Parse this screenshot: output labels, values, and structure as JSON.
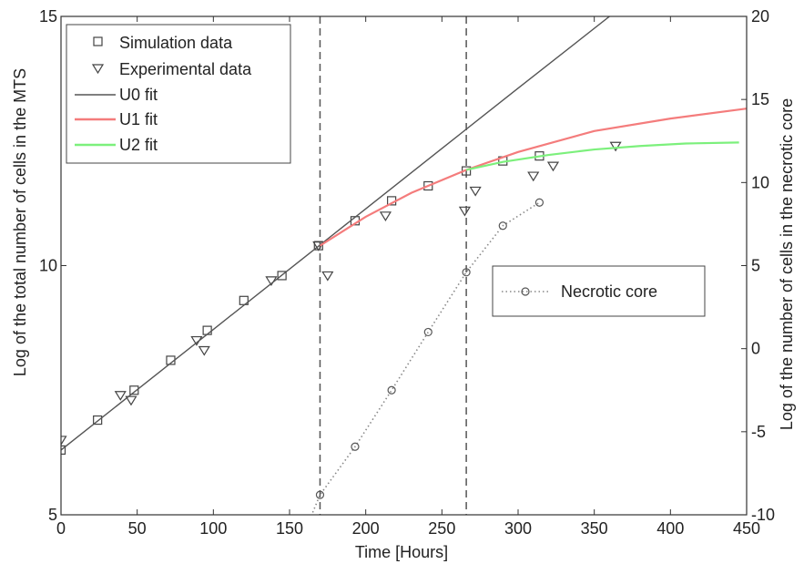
{
  "chart_data": {
    "type": "line",
    "xlabel": "Time [Hours]",
    "ylabel_left": "Log of the total number of cells in the MTS",
    "ylabel_right": "Log of the number of cells in the necrotic core",
    "xlim": [
      0,
      450
    ],
    "ylim_left": [
      5,
      15
    ],
    "ylim_right": [
      -10,
      20
    ],
    "x_ticks": [
      0,
      50,
      100,
      150,
      200,
      250,
      300,
      350,
      400,
      450
    ],
    "y_ticks_left": [
      5,
      10,
      15
    ],
    "y_ticks_right": [
      -10,
      -5,
      0,
      5,
      10,
      15,
      20
    ],
    "grid": false,
    "vertical_reference_lines": [
      170,
      266
    ],
    "legend_main": {
      "placement": "top-left",
      "entries": [
        "Simulation data",
        "Experimental data",
        "U0 fit",
        "U1 fit",
        "U2 fit"
      ]
    },
    "legend_secondary": {
      "placement": "center-right",
      "entries": [
        "Necrotic core"
      ]
    },
    "series": [
      {
        "name": "Simulation data",
        "kind": "marker-square",
        "axis": "left",
        "color": "#444444",
        "x": [
          0,
          24,
          48,
          72,
          96,
          120,
          145,
          169,
          193,
          217,
          241,
          266,
          290,
          314
        ],
        "y": [
          6.3,
          6.9,
          7.5,
          8.1,
          8.7,
          9.3,
          9.8,
          10.4,
          10.9,
          11.3,
          11.6,
          11.9,
          12.1,
          12.2
        ]
      },
      {
        "name": "Experimental data",
        "kind": "marker-triangle-down",
        "axis": "left",
        "color": "#444444",
        "x": [
          0,
          39,
          46,
          89,
          94,
          138,
          169,
          175,
          213,
          265,
          272,
          310,
          323,
          364
        ],
        "y": [
          6.5,
          7.4,
          7.3,
          8.5,
          8.3,
          9.7,
          10.4,
          9.8,
          11.0,
          11.1,
          11.5,
          11.8,
          12.0,
          12.4
        ]
      },
      {
        "name": "U0 fit",
        "kind": "line",
        "axis": "left",
        "color": "#555555",
        "x": [
          0,
          50,
          100,
          150,
          200,
          250,
          300,
          360
        ],
        "y": [
          6.3,
          7.51,
          8.72,
          9.93,
          11.14,
          12.35,
          13.56,
          15.0
        ]
      },
      {
        "name": "U1 fit",
        "kind": "line",
        "axis": "left",
        "color": "#f47c7c",
        "x": [
          170,
          200,
          230,
          266,
          300,
          350,
          400,
          450
        ],
        "y": [
          10.4,
          10.98,
          11.46,
          11.92,
          12.28,
          12.7,
          12.95,
          13.15
        ]
      },
      {
        "name": "U2 fit",
        "kind": "line",
        "axis": "left",
        "color": "#7cf07c",
        "x": [
          266,
          290,
          320,
          350,
          380,
          410,
          445
        ],
        "y": [
          11.92,
          12.08,
          12.22,
          12.33,
          12.4,
          12.45,
          12.47
        ]
      },
      {
        "name": "Necrotic core",
        "kind": "dotted-line-circle",
        "axis": "right",
        "color": "#888888",
        "x": [
          160,
          170,
          193,
          217,
          241,
          266,
          290,
          314
        ],
        "y": [
          -11,
          -8.8,
          -5.9,
          -2.5,
          1.0,
          4.6,
          7.4,
          8.8
        ],
        "markers_from_index": 1
      }
    ]
  }
}
